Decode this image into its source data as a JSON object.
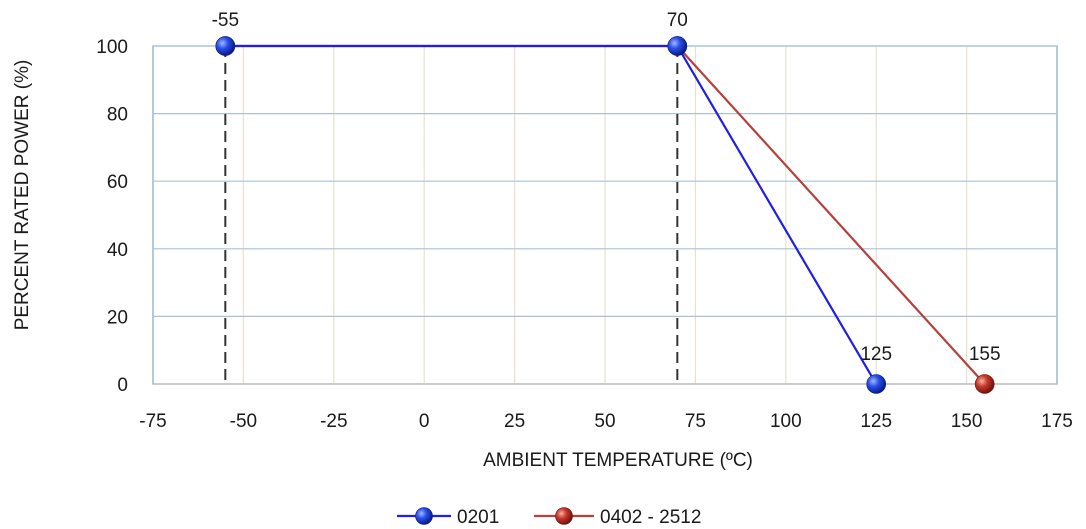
{
  "chart_data": {
    "type": "line",
    "title": "",
    "xlabel": "AMBIENT TEMPERATURE (ºC)",
    "ylabel": "PERCENT RATED POWER (%)",
    "xlim": [
      -75,
      175
    ],
    "ylim": [
      0,
      100
    ],
    "xticks": [
      -75,
      -50,
      -25,
      0,
      25,
      50,
      75,
      100,
      125,
      150,
      175
    ],
    "yticks": [
      0,
      20,
      40,
      60,
      80,
      100
    ],
    "grid": true,
    "legend_position": "bottom",
    "series": [
      {
        "name": "0201",
        "color": "#1f1fe6",
        "marker_color": "#1f4fe0",
        "points": [
          {
            "x": -55,
            "y": 100
          },
          {
            "x": 70,
            "y": 100
          },
          {
            "x": 125,
            "y": 0
          }
        ]
      },
      {
        "name": "0402 - 2512",
        "color": "#b5403d",
        "marker_color": "#c0392b",
        "points": [
          {
            "x": -55,
            "y": 100
          },
          {
            "x": 70,
            "y": 100
          },
          {
            "x": 155,
            "y": 0
          }
        ]
      }
    ],
    "reference_lines": [
      {
        "x": -55
      },
      {
        "x": 70
      }
    ],
    "annotations": [
      {
        "text": "-55",
        "x": -55,
        "y": 100
      },
      {
        "text": "70",
        "x": 70,
        "y": 100
      },
      {
        "text": "125",
        "x": 125,
        "y": 0
      },
      {
        "text": "155",
        "x": 155,
        "y": 0
      }
    ]
  }
}
